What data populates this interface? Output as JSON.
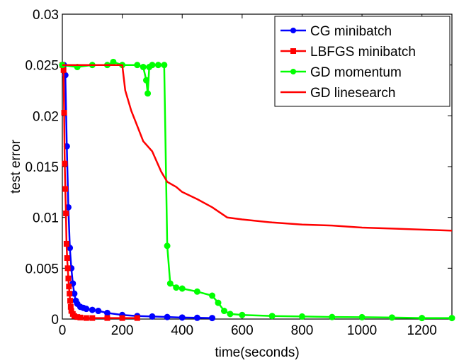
{
  "chart_data": {
    "type": "line",
    "title": "",
    "xlabel": "time(seconds)",
    "ylabel": "test error",
    "xlim": [
      0,
      1300
    ],
    "ylim": [
      0,
      0.03
    ],
    "xticks": [
      0,
      200,
      400,
      600,
      800,
      1000,
      1200
    ],
    "xtick_labels": [
      "0",
      "200",
      "400",
      "600",
      "800",
      "1000",
      "1200"
    ],
    "yticks": [
      0,
      0.005,
      0.01,
      0.015,
      0.02,
      0.025,
      0.03
    ],
    "ytick_labels": [
      "0",
      "0.005",
      "0.01",
      "0.015",
      "0.02",
      "0.025",
      "0.03"
    ],
    "grid": false,
    "legend_position": "top-right",
    "series": [
      {
        "name": "CG minibatch",
        "color": "#0000ff",
        "marker": "circle",
        "x": [
          0,
          5,
          10,
          15,
          20,
          25,
          30,
          35,
          40,
          45,
          50,
          60,
          70,
          80,
          100,
          120,
          150,
          200,
          250,
          300,
          350,
          400,
          450,
          500
        ],
        "y": [
          0.025,
          0.025,
          0.024,
          0.017,
          0.011,
          0.007,
          0.005,
          0.0035,
          0.0025,
          0.0018,
          0.0015,
          0.0012,
          0.0011,
          0.001,
          0.0009,
          0.0008,
          0.0006,
          0.0004,
          0.0003,
          0.00025,
          0.0002,
          0.00015,
          0.00012,
          0.0001
        ]
      },
      {
        "name": "LBFGS minibatch",
        "color": "#ff0000",
        "marker": "square",
        "x": [
          0,
          4,
          6,
          8,
          10,
          12,
          14,
          16,
          18,
          20,
          22,
          24,
          26,
          28,
          30,
          35,
          40,
          50,
          60,
          80,
          100,
          150,
          200,
          250
        ],
        "y": [
          0.025,
          0.0245,
          0.0203,
          0.0153,
          0.0128,
          0.0104,
          0.0074,
          0.006,
          0.005,
          0.004,
          0.0032,
          0.0025,
          0.0018,
          0.0012,
          0.0008,
          0.0005,
          0.0003,
          0.0002,
          0.00015,
          0.0001,
          0.0001,
          0.0001,
          0.0001,
          0.0001
        ]
      },
      {
        "name": "GD momentum",
        "color": "#00ff00",
        "marker": "circle",
        "x": [
          0,
          50,
          100,
          150,
          170,
          200,
          250,
          270,
          280,
          285,
          290,
          300,
          320,
          340,
          350,
          360,
          380,
          400,
          450,
          500,
          520,
          540,
          560,
          600,
          700,
          800,
          900,
          1000,
          1100,
          1200,
          1300
        ],
        "y": [
          0.025,
          0.0248,
          0.025,
          0.025,
          0.0253,
          0.025,
          0.025,
          0.0248,
          0.0235,
          0.0222,
          0.0248,
          0.025,
          0.025,
          0.025,
          0.0072,
          0.0035,
          0.0031,
          0.003,
          0.0027,
          0.0023,
          0.0016,
          0.0008,
          0.0005,
          0.0004,
          0.0003,
          0.00025,
          0.0002,
          0.00018,
          0.00015,
          0.0001,
          0.0001
        ]
      },
      {
        "name": "GD linesearch",
        "color": "#ff0000",
        "marker": "none",
        "x": [
          0,
          50,
          100,
          150,
          200,
          210,
          230,
          250,
          270,
          300,
          330,
          350,
          380,
          400,
          450,
          500,
          550,
          600,
          700,
          800,
          900,
          1000,
          1100,
          1200,
          1300
        ],
        "y": [
          0.025,
          0.025,
          0.025,
          0.025,
          0.025,
          0.0225,
          0.0205,
          0.019,
          0.0175,
          0.0165,
          0.0145,
          0.0135,
          0.013,
          0.0125,
          0.0118,
          0.011,
          0.01,
          0.0098,
          0.0095,
          0.0093,
          0.0092,
          0.009,
          0.0089,
          0.0088,
          0.0087
        ]
      }
    ]
  }
}
